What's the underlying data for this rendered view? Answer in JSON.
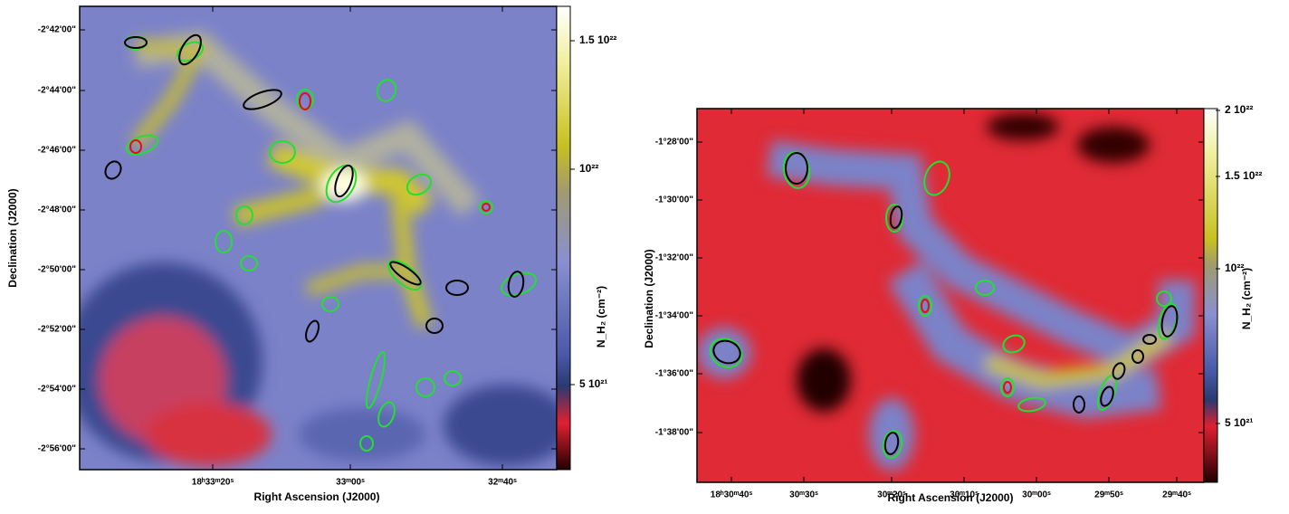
{
  "left_panel": {
    "y_ticks": [
      "-2°42'00\"",
      "-2°44'00\"",
      "-2°46'00\"",
      "-2°48'00\"",
      "-2°50'00\"",
      "-2°52'00\"",
      "-2°54'00\"",
      "-2°56'00\""
    ],
    "x_ticks": [
      "18ʰ33ᵐ20ˢ",
      "33ᵐ00ˢ",
      "32ᵐ40ˢ"
    ],
    "x_title": "Right Ascension (J2000)",
    "y_title": "Declination (J2000)",
    "colorbar": {
      "labels": [
        "1.5 10²²",
        "10²²",
        "5 10²¹"
      ],
      "title": "N_H₂ (cm⁻²)"
    }
  },
  "right_panel": {
    "y_ticks": [
      "-1°28'00\"",
      "-1°30'00\"",
      "-1°32'00\"",
      "-1°34'00\"",
      "-1°36'00\"",
      "-1°38'00\""
    ],
    "x_ticks": [
      "18ʰ30ᵐ40ˢ",
      "30ᵐ30ˢ",
      "30ᵐ20ˢ",
      "30ᵐ10ˢ",
      "30ᵐ00ˢ",
      "29ᵐ50ˢ",
      "29ᵐ40ˢ"
    ],
    "x_title": "Right Ascension (J2000)",
    "y_title": "Declination (J2000)",
    "colorbar": {
      "labels": [
        "2 10²²",
        "1.5 10²²",
        "10²²",
        "5 10²¹"
      ],
      "title": "N_H₂ (cm⁻²)"
    }
  }
}
